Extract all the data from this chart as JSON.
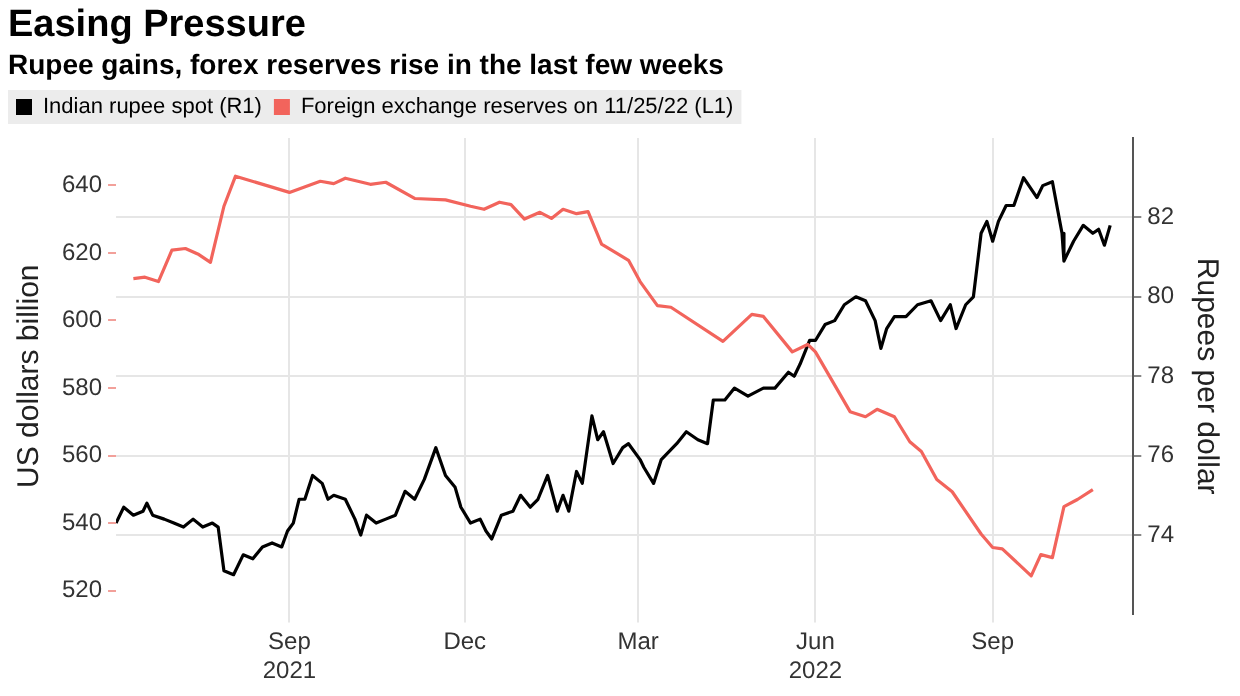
{
  "chart_data": {
    "type": "line",
    "title": "Easing Pressure",
    "subtitle": "Rupee gains, forex reserves rise in the last few weeks",
    "ylabel": "US dollars billion",
    "y2label": "Rupees per dollar",
    "xlim": [
      "2021-06-03",
      "2022-11-13"
    ],
    "xticks": [
      {
        "value": "2021-09-01",
        "label": "Sep\n2021"
      },
      {
        "value": "2021-12-01",
        "label": "Dec"
      },
      {
        "value": "2022-03-01",
        "label": "Mar"
      },
      {
        "value": "2022-06-01",
        "label": "Jun\n2022"
      },
      {
        "value": "2022-09-01",
        "label": "Sep"
      }
    ],
    "ylim": [
      513,
      654
    ],
    "yticks": [
      520,
      540,
      560,
      580,
      600,
      620,
      640
    ],
    "y2lim": [
      72,
      84
    ],
    "y2ticks": [
      74,
      76,
      78,
      80,
      82
    ],
    "grid": true,
    "legend": "top left",
    "series": [
      {
        "name": "Indian rupee spot (R1)",
        "color": "#000000",
        "axis": "y2",
        "x": [
          "2021-06-03",
          "2021-06-07",
          "2021-06-12",
          "2021-06-17",
          "2021-06-19",
          "2021-06-22",
          "2021-06-28",
          "2021-07-03",
          "2021-07-08",
          "2021-07-13",
          "2021-07-18",
          "2021-07-23",
          "2021-07-26",
          "2021-07-29",
          "2021-08-03",
          "2021-08-08",
          "2021-08-13",
          "2021-08-18",
          "2021-08-23",
          "2021-08-28",
          "2021-08-31",
          "2021-09-03",
          "2021-09-06",
          "2021-09-09",
          "2021-09-13",
          "2021-09-18",
          "2021-09-21",
          "2021-09-24",
          "2021-09-30",
          "2021-10-05",
          "2021-10-08",
          "2021-10-11",
          "2021-10-16",
          "2021-10-21",
          "2021-10-26",
          "2021-10-31",
          "2021-11-05",
          "2021-11-10",
          "2021-11-16",
          "2021-11-21",
          "2021-11-26",
          "2021-11-29",
          "2021-12-04",
          "2021-12-09",
          "2021-12-12",
          "2021-12-15",
          "2021-12-20",
          "2021-12-26",
          "2021-12-30",
          "2022-01-04",
          "2022-01-08",
          "2022-01-13",
          "2022-01-18",
          "2022-01-21",
          "2022-01-24",
          "2022-01-28",
          "2022-01-31",
          "2022-02-05",
          "2022-02-08",
          "2022-02-11",
          "2022-02-16",
          "2022-02-21",
          "2022-02-24",
          "2022-03-02",
          "2022-03-04",
          "2022-03-09",
          "2022-03-13",
          "2022-03-21",
          "2022-03-26",
          "2022-04-01",
          "2022-04-06",
          "2022-04-09",
          "2022-04-15",
          "2022-04-20",
          "2022-04-27",
          "2022-05-05",
          "2022-05-11",
          "2022-05-18",
          "2022-05-21",
          "2022-05-24",
          "2022-05-29",
          "2022-06-01",
          "2022-06-06",
          "2022-06-11",
          "2022-06-16",
          "2022-06-22",
          "2022-06-27",
          "2022-07-02",
          "2022-07-05",
          "2022-07-08",
          "2022-07-12",
          "2022-07-18",
          "2022-07-24",
          "2022-07-31",
          "2022-08-05",
          "2022-08-10",
          "2022-08-13",
          "2022-08-18",
          "2022-08-22",
          "2022-08-26",
          "2022-08-29",
          "2022-09-01",
          "2022-09-04",
          "2022-09-08",
          "2022-09-12",
          "2022-09-17",
          "2022-09-24",
          "2022-09-27",
          "2022-10-02",
          "2022-10-07",
          "2022-10-08",
          "2022-10-13",
          "2022-10-18",
          "2022-10-23",
          "2022-10-26",
          "2022-10-29",
          "2022-11-01"
        ],
        "values": [
          74.3,
          74.7,
          74.5,
          74.6,
          74.8,
          74.5,
          74.4,
          74.3,
          74.2,
          74.4,
          74.2,
          74.3,
          74.2,
          73.1,
          73.0,
          73.5,
          73.4,
          73.7,
          73.8,
          73.7,
          74.1,
          74.3,
          74.9,
          74.9,
          75.5,
          75.3,
          74.9,
          75.0,
          74.9,
          74.4,
          74.0,
          74.5,
          74.3,
          74.4,
          74.5,
          75.1,
          74.9,
          75.4,
          76.2,
          75.5,
          75.2,
          74.7,
          74.3,
          74.4,
          74.1,
          73.9,
          74.5,
          74.6,
          75.0,
          74.7,
          74.9,
          75.5,
          74.6,
          75.0,
          74.6,
          75.6,
          75.3,
          77.0,
          76.4,
          76.6,
          75.8,
          76.2,
          76.3,
          75.9,
          75.7,
          75.3,
          75.9,
          76.3,
          76.6,
          76.4,
          76.3,
          77.4,
          77.4,
          77.7,
          77.5,
          77.7,
          77.7,
          78.1,
          78.0,
          78.3,
          78.9,
          78.9,
          79.3,
          79.4,
          79.8,
          80.0,
          79.9,
          79.4,
          78.7,
          79.2,
          79.5,
          79.5,
          79.8,
          79.9,
          79.4,
          79.8,
          79.2,
          79.8,
          80.0,
          81.6,
          81.9,
          81.4,
          81.9,
          82.3,
          82.3,
          83.0,
          82.5,
          82.8,
          82.9,
          81.6,
          80.9,
          81.4,
          81.8,
          81.6,
          81.7,
          81.3,
          81.8
        ]
      },
      {
        "name": "Foreign exchange reserves on 11/25/22 (L1)",
        "color": "#f2645c",
        "axis": "y",
        "x": [
          "2021-06-12",
          "2021-06-18",
          "2021-06-25",
          "2021-07-02",
          "2021-07-09",
          "2021-07-16",
          "2021-07-22",
          "2021-07-29",
          "2021-08-04",
          "2021-09-01",
          "2021-09-17",
          "2021-09-24",
          "2021-09-30",
          "2021-10-13",
          "2021-10-21",
          "2021-11-05",
          "2021-11-21",
          "2021-12-04",
          "2021-12-11",
          "2021-12-19",
          "2021-12-25",
          "2022-01-01",
          "2022-01-09",
          "2022-01-15",
          "2022-01-21",
          "2022-01-28",
          "2022-02-03",
          "2022-02-10",
          "2022-02-24",
          "2022-03-02",
          "2022-03-11",
          "2022-03-18",
          "2022-04-14",
          "2022-04-29",
          "2022-05-05",
          "2022-05-20",
          "2022-05-28",
          "2022-06-01",
          "2022-06-19",
          "2022-06-27",
          "2022-07-03",
          "2022-07-12",
          "2022-07-20",
          "2022-07-26",
          "2022-08-03",
          "2022-08-11",
          "2022-08-26",
          "2022-09-01",
          "2022-09-06",
          "2022-09-21",
          "2022-09-26",
          "2022-10-02",
          "2022-10-08",
          "2022-10-15",
          "2022-10-23"
        ],
        "values": [
          612.4,
          612.8,
          611.5,
          620.8,
          621.3,
          619.5,
          617.2,
          633.8,
          642.7,
          637.9,
          641.2,
          640.5,
          642.1,
          640.3,
          640.9,
          636.1,
          635.7,
          633.8,
          632.9,
          635.0,
          634.3,
          630.0,
          632.0,
          630.2,
          632.9,
          631.6,
          632.2,
          622.6,
          617.8,
          611.5,
          604.4,
          603.9,
          593.8,
          601.8,
          601.2,
          590.7,
          592.9,
          590.7,
          573.0,
          571.5,
          573.7,
          571.5,
          564.1,
          561.2,
          552.9,
          549.3,
          536.8,
          532.8,
          532.4,
          524.4,
          530.7,
          529.8,
          544.9,
          547.0,
          549.9
        ]
      }
    ]
  }
}
